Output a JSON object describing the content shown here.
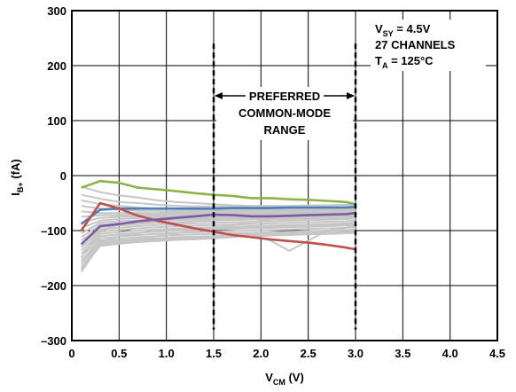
{
  "chart_data": {
    "type": "line",
    "title": "",
    "xlabel_main": "V",
    "xlabel_sub": "CM",
    "xlabel_unit": " (V)",
    "ylabel_main": "I",
    "ylabel_sub": "B+",
    "ylabel_unit": " (fA)",
    "xlim": [
      0,
      4.5
    ],
    "ylim": [
      -300,
      300
    ],
    "xticks": [
      0,
      0.5,
      1.0,
      1.5,
      2.0,
      2.5,
      3.0,
      3.5,
      4.0,
      4.5
    ],
    "xtick_labels": [
      "0",
      "0.5",
      "1.0",
      "1.5",
      "2.0",
      "2.5",
      "3.0",
      "3.5",
      "4.0",
      "4.5"
    ],
    "yticks": [
      -300,
      -200,
      -100,
      0,
      100,
      200,
      300
    ],
    "ytick_labels": [
      "–300",
      "–200",
      "–100",
      "0",
      "100",
      "200",
      "300"
    ],
    "grid": true,
    "conditions": {
      "vsy_main": "V",
      "vsy_sub": "SY",
      "vsy_value": " = 4.5V",
      "channels": "27 CHANNELS",
      "ta_main": "T",
      "ta_sub": "A",
      "ta_value": " = 125°C"
    },
    "range_annotation": {
      "x_start": 1.5,
      "x_end": 3.0,
      "line1": "PREFERRED",
      "line2": "COMMON-MODE",
      "line3": "RANGE"
    },
    "x": [
      0.1,
      0.3,
      0.5,
      0.7,
      0.9,
      1.1,
      1.3,
      1.5,
      1.7,
      1.9,
      2.1,
      2.3,
      2.5,
      2.7,
      2.9,
      3.0
    ],
    "highlight_series": [
      {
        "color": "#8db24a",
        "values": [
          -22,
          -10,
          -13,
          -22,
          -25,
          -28,
          -32,
          -35,
          -37,
          -41,
          -41,
          -43,
          -44,
          -46,
          -48,
          -52
        ]
      },
      {
        "color": "#4a7ebb",
        "values": [
          -88,
          -62,
          -60,
          -60,
          -60,
          -60,
          -60,
          -60,
          -59,
          -59,
          -59,
          -58,
          -58,
          -58,
          -58,
          -57
        ]
      },
      {
        "color": "#c0504d",
        "values": [
          -100,
          -50,
          -60,
          -73,
          -82,
          -89,
          -96,
          -102,
          -108,
          -112,
          -116,
          -119,
          -122,
          -126,
          -131,
          -134
        ]
      },
      {
        "color": "#7b5aa5",
        "values": [
          -125,
          -92,
          -88,
          -83,
          -80,
          -77,
          -74,
          -71,
          -72,
          -74,
          -74,
          -73,
          -72,
          -71,
          -70,
          -68
        ]
      }
    ],
    "background_series_color": "#c6c6c6",
    "background_series": [
      [
        -20,
        -30,
        -36,
        -40,
        -45,
        -48,
        -50,
        -52,
        -54,
        -55,
        -55,
        -55,
        -54,
        -54,
        -53,
        -52
      ],
      [
        -35,
        -42,
        -48,
        -50,
        -53,
        -55,
        -56,
        -56,
        -57,
        -57,
        -56,
        -56,
        -55,
        -55,
        -54,
        -53
      ],
      [
        -45,
        -52,
        -55,
        -58,
        -60,
        -60,
        -61,
        -61,
        -60,
        -60,
        -60,
        -59,
        -59,
        -58,
        -58,
        -58
      ],
      [
        -55,
        -60,
        -62,
        -64,
        -64,
        -64,
        -63,
        -63,
        -63,
        -62,
        -62,
        -62,
        -61,
        -61,
        -61,
        -60
      ],
      [
        -65,
        -68,
        -68,
        -68,
        -68,
        -67,
        -66,
        -66,
        -65,
        -65,
        -65,
        -64,
        -63,
        -63,
        -62,
        -62
      ],
      [
        -75,
        -72,
        -72,
        -71,
        -71,
        -70,
        -69,
        -69,
        -68,
        -67,
        -67,
        -66,
        -65,
        -64,
        -63,
        -62
      ],
      [
        -85,
        -77,
        -75,
        -74,
        -73,
        -72,
        -71,
        -70,
        -70,
        -69,
        -68,
        -68,
        -67,
        -66,
        -66,
        -65
      ],
      [
        -95,
        -82,
        -79,
        -77,
        -76,
        -75,
        -74,
        -73,
        -72,
        -72,
        -71,
        -70,
        -70,
        -69,
        -68,
        -68
      ],
      [
        -105,
        -86,
        -83,
        -81,
        -79,
        -78,
        -77,
        -76,
        -75,
        -74,
        -74,
        -73,
        -72,
        -72,
        -71,
        -70
      ],
      [
        -112,
        -90,
        -87,
        -85,
        -83,
        -81,
        -80,
        -79,
        -78,
        -77,
        -77,
        -76,
        -75,
        -74,
        -74,
        -73
      ],
      [
        -118,
        -94,
        -91,
        -88,
        -86,
        -85,
        -83,
        -82,
        -81,
        -80,
        -79,
        -79,
        -78,
        -77,
        -76,
        -76
      ],
      [
        -124,
        -98,
        -95,
        -92,
        -90,
        -88,
        -87,
        -86,
        -85,
        -84,
        -83,
        -82,
        -81,
        -80,
        -79,
        -78
      ],
      [
        -130,
        -102,
        -99,
        -96,
        -94,
        -92,
        -91,
        -90,
        -89,
        -88,
        -87,
        -86,
        -85,
        -84,
        -83,
        -82
      ],
      [
        -136,
        -106,
        -103,
        -100,
        -98,
        -96,
        -95,
        -94,
        -93,
        -92,
        -91,
        -90,
        -89,
        -88,
        -87,
        -86
      ],
      [
        -142,
        -110,
        -107,
        -104,
        -102,
        -100,
        -99,
        -98,
        -97,
        -96,
        -95,
        -94,
        -93,
        -92,
        -91,
        -90
      ],
      [
        -148,
        -114,
        -111,
        -108,
        -106,
        -104,
        -103,
        -102,
        -101,
        -100,
        -99,
        -98,
        -97,
        -96,
        -95,
        -94
      ],
      [
        -155,
        -118,
        -115,
        -112,
        -110,
        -108,
        -107,
        -106,
        -105,
        -104,
        -103,
        -102,
        -101,
        -100,
        -99,
        -98
      ],
      [
        -160,
        -122,
        -118,
        -116,
        -114,
        -112,
        -111,
        -110,
        -108,
        -107,
        -106,
        -105,
        -104,
        -103,
        -102,
        -101
      ],
      [
        -166,
        -126,
        -122,
        -119,
        -117,
        -115,
        -114,
        -112,
        -111,
        -110,
        -109,
        -108,
        -107,
        -106,
        -105,
        -104
      ],
      [
        -170,
        -128,
        -124,
        -121,
        -119,
        -117,
        -116,
        -114,
        -112,
        -108,
        -118,
        -137,
        -118,
        -100,
        -95,
        -92
      ],
      [
        -175,
        -125,
        -120,
        -115,
        -110,
        -105,
        -100,
        -95,
        -90,
        -85,
        -80,
        -75,
        -70,
        -65,
        -60,
        -48
      ],
      [
        -172,
        -120,
        -110,
        -105,
        -100,
        -98,
        -96,
        -95,
        -94,
        -93,
        -92,
        -91,
        -90,
        -90,
        -89,
        -88
      ],
      [
        -150,
        -100,
        -90,
        -85,
        -82,
        -80,
        -79,
        -78,
        -77,
        -77,
        -76,
        -75,
        -74,
        -74,
        -73,
        -72
      ]
    ]
  }
}
